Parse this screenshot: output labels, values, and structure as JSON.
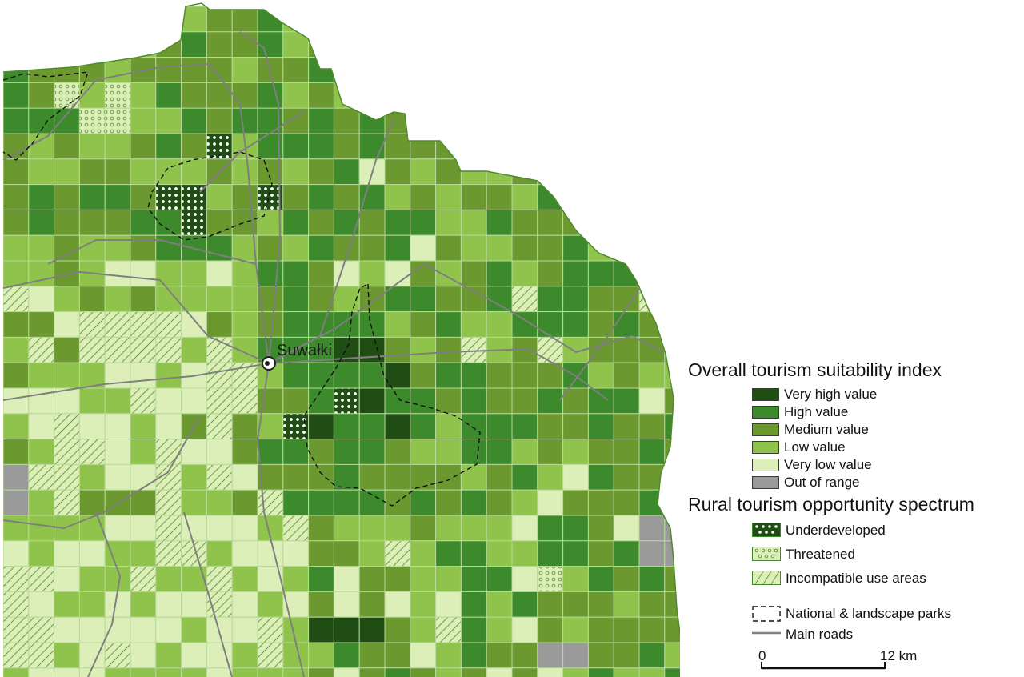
{
  "map": {
    "town": "Suwałki",
    "colors": {
      "very_high": "#1f4d14",
      "high": "#3c8a2c",
      "medium": "#6b982f",
      "low": "#8fc34c",
      "very_low": "#dcefb8",
      "out": "#9a9a9a",
      "grid": "#b8d89a",
      "road": "#7f7f7f",
      "park": "#111111"
    }
  },
  "legend": {
    "index_title": "Overall tourism suitability index",
    "items": [
      {
        "key": "very_high",
        "label": "Very high value",
        "color": "#1f4d14"
      },
      {
        "key": "high",
        "label": "High value",
        "color": "#3c8a2c"
      },
      {
        "key": "medium",
        "label": "Medium value",
        "color": "#6b982f"
      },
      {
        "key": "low",
        "label": "Low value",
        "color": "#8fc34c"
      },
      {
        "key": "very_low",
        "label": "Very low value",
        "color": "#dcefb8"
      },
      {
        "key": "out",
        "label": "Out of range",
        "color": "#9a9a9a"
      }
    ],
    "spectrum_title": "Rural tourism opportunity spectrum",
    "spectrum": [
      {
        "key": "underdeveloped",
        "label": "Underdeveloped"
      },
      {
        "key": "threatened",
        "label": "Threatened"
      },
      {
        "key": "incompatible",
        "label": "Incompatible use areas"
      }
    ],
    "parks_label": "National & landscape parks",
    "roads_label": "Main roads",
    "scale_start": "0",
    "scale_end": "12 km"
  }
}
